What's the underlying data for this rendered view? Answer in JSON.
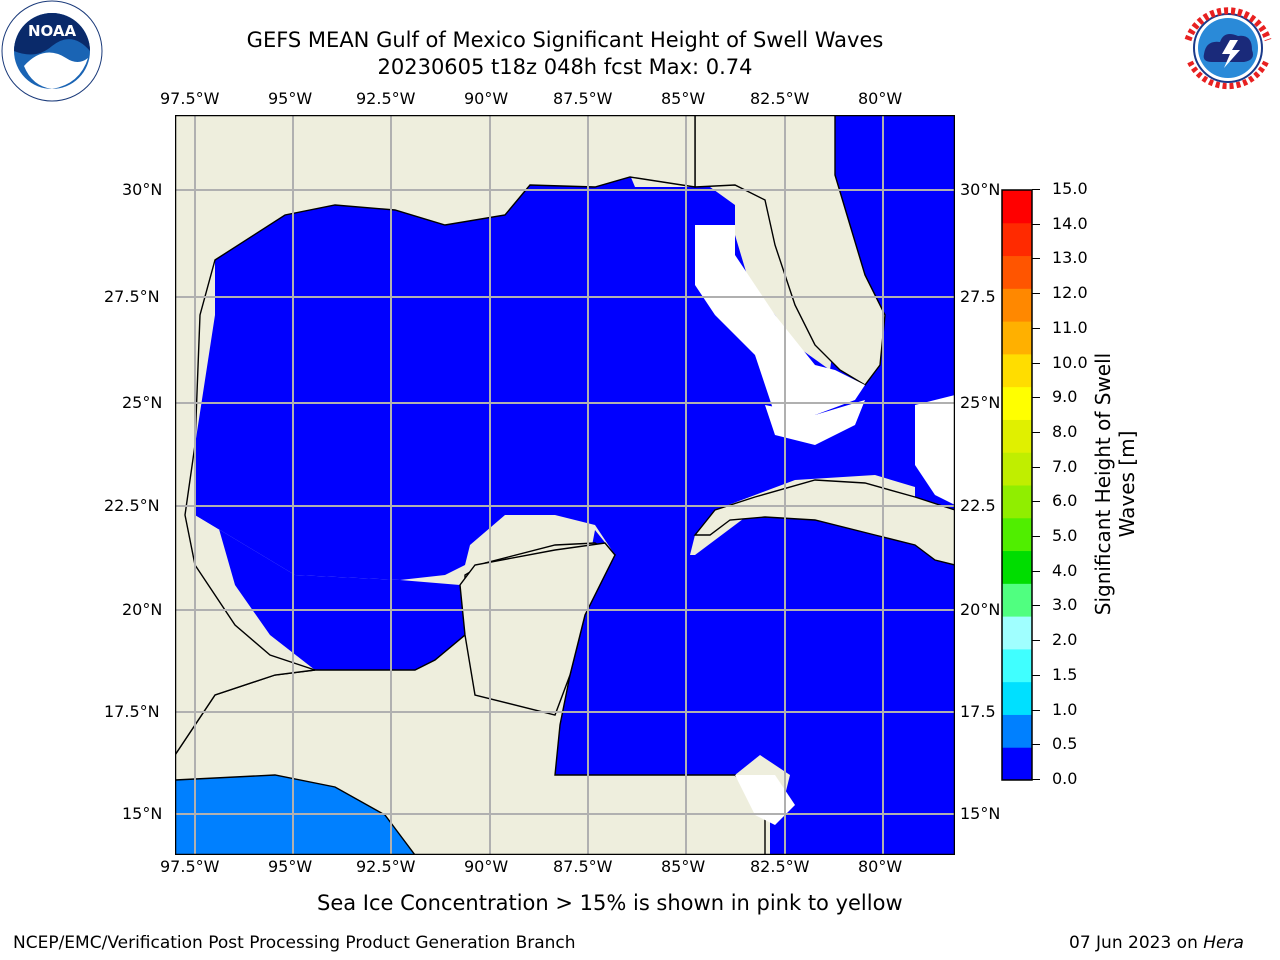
{
  "title": {
    "line1": "GEFS MEAN Gulf of Mexico Significant Height of Swell Waves",
    "line2": "20230605 t18z 048h fcst   Max: 0.74"
  },
  "logos": {
    "noaa": {
      "icon": "noaa-logo",
      "text": "NOAA"
    },
    "nws": {
      "icon": "national-weather-service-logo"
    }
  },
  "map": {
    "lon_labels": [
      "97.5°W",
      "95°W",
      "92.5°W",
      "90°W",
      "87.5°W",
      "85°W",
      "82.5°W",
      "80°W"
    ],
    "lat_labels_left": [
      "30°N",
      "27.5°N",
      "25°N",
      "22.5°N",
      "20°N",
      "17.5°N",
      "15°N"
    ],
    "lat_labels_right": [
      "30°N",
      "27.5",
      "25°N",
      "22.5",
      "20°N",
      "17.5",
      "15°N"
    ],
    "colors": {
      "land": "#eeeedd",
      "water_low": "#0000ff",
      "water_mid": "#0080ff",
      "grid": "#b0b0b0"
    }
  },
  "colorbar": {
    "label": "Significant Height of Swell Waves [m]",
    "ticks": [
      "15.0",
      "14.0",
      "13.0",
      "12.0",
      "11.0",
      "10.0",
      "9.0",
      "8.0",
      "7.0",
      "6.0",
      "5.0",
      "4.0",
      "3.0",
      "2.0",
      "1.5",
      "1.0",
      "0.5",
      "0.0"
    ],
    "colors": [
      "#0000ff",
      "#0080ff",
      "#00e0ff",
      "#40ffff",
      "#a0ffff",
      "#50ff80",
      "#00dd00",
      "#50ee00",
      "#90ee00",
      "#c0ee00",
      "#e0f000",
      "#ffff00",
      "#ffdd00",
      "#ffb000",
      "#ff8800",
      "#ff5500",
      "#ff2a00",
      "#ff0000"
    ]
  },
  "note": "Sea Ice Concentration > 15% is shown in pink to yellow",
  "footer": {
    "left": "NCEP/EMC/Verification Post Processing Product Generation Branch",
    "date": "07 Jun 2023 on ",
    "machine": "Hera"
  }
}
